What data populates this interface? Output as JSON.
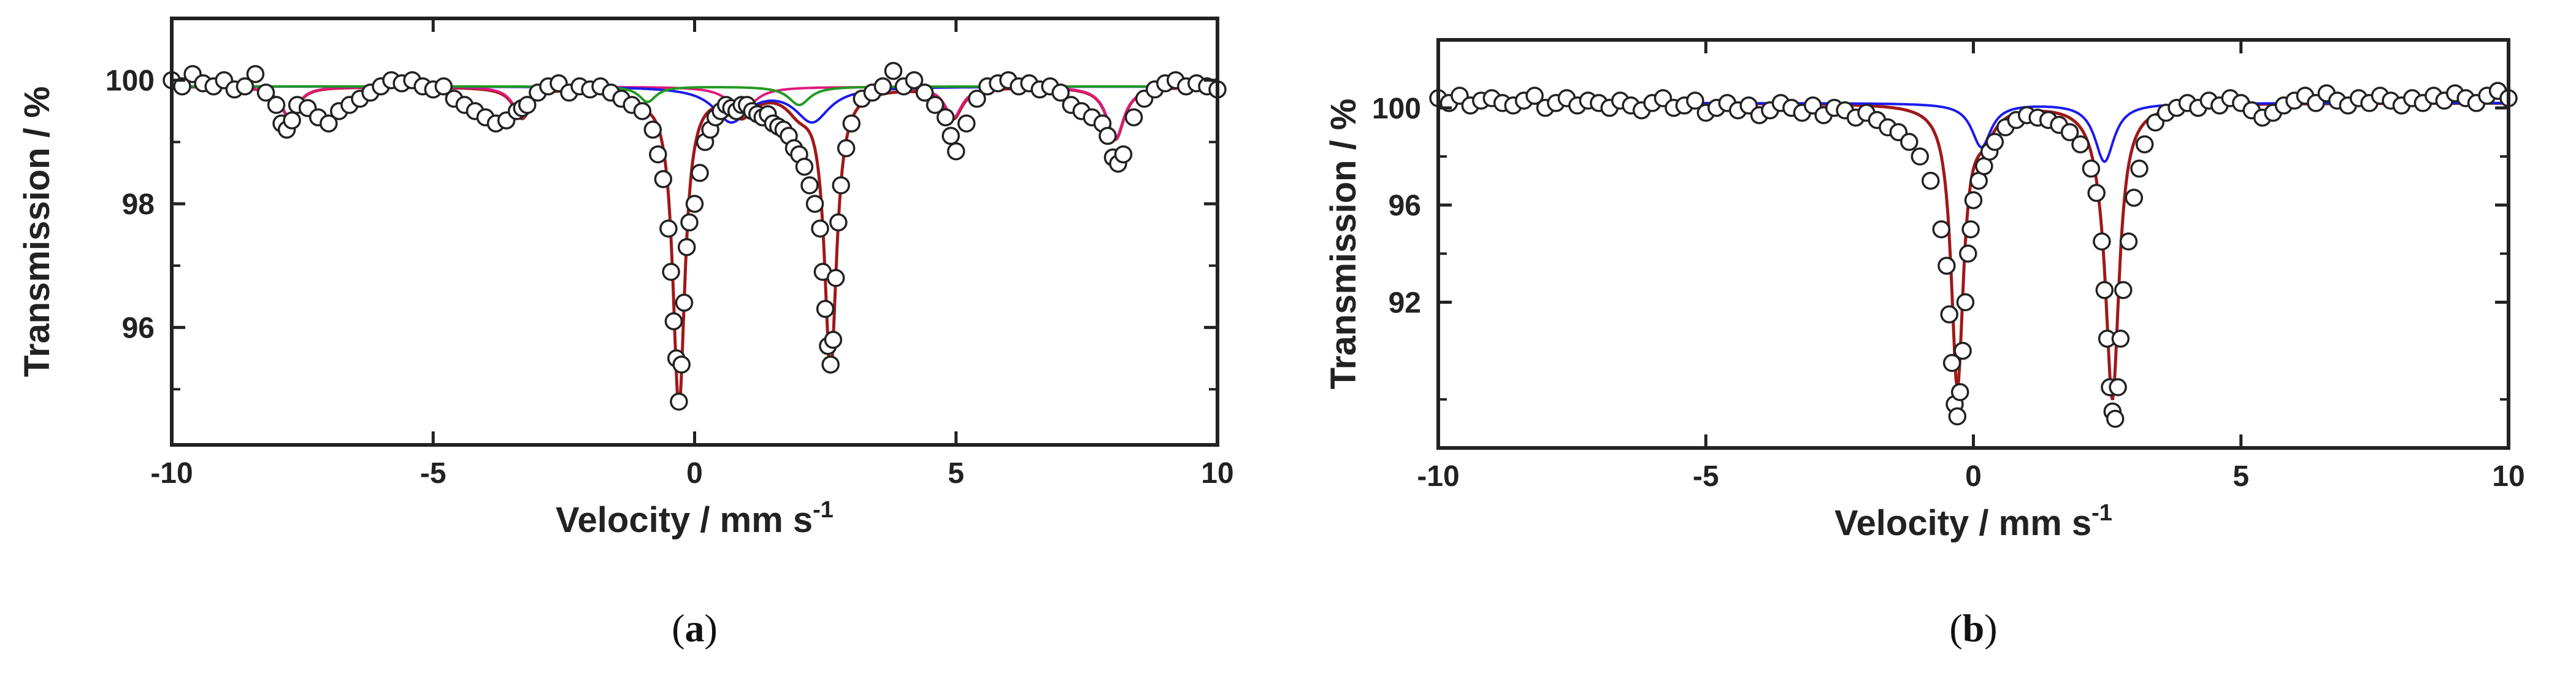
{
  "chart_data": [
    {
      "type": "scatter",
      "panel_label": "(a)",
      "panel_letter": "a",
      "xlabel": "Velocity / mm s",
      "xlabel_superscript": "-1",
      "ylabel": "Transmission / %",
      "xlim": [
        -10,
        10
      ],
      "ylim": [
        94.1,
        101.0
      ],
      "x_ticks": [
        -10,
        -5,
        0,
        5,
        10
      ],
      "x_tick_labels": [
        "-10",
        "-5",
        "0",
        "5",
        "10"
      ],
      "y_ticks": [
        96,
        98,
        100
      ],
      "y_tick_labels": [
        "96",
        "98",
        "100"
      ],
      "y_minor_ticks": [
        95,
        97,
        99
      ],
      "grid": false,
      "baseline": 99.9,
      "series": [
        {
          "color": "#a01818",
          "role": "total-fit",
          "components": [
            [
              -0.3,
              5.15,
              0.14
            ],
            [
              2.6,
              4.55,
              0.14
            ],
            [
              -7.75,
              0.5,
              0.2
            ],
            [
              -3.3,
              0.5,
              0.2
            ],
            [
              0.9,
              0.4,
              0.3
            ],
            [
              4.95,
              0.5,
              0.2
            ],
            [
              8.05,
              0.85,
              0.2
            ],
            [
              -1.2,
              0.25,
              0.3
            ],
            [
              2.0,
              0.3,
              0.3
            ]
          ]
        },
        {
          "color": "#e0187c",
          "role": "sextet-component",
          "components": [
            [
              -7.75,
              0.5,
              0.2
            ],
            [
              -3.3,
              0.5,
              0.2
            ],
            [
              0.9,
              0.4,
              0.3
            ],
            [
              4.95,
              0.5,
              0.2
            ],
            [
              8.05,
              0.85,
              0.2
            ]
          ]
        },
        {
          "color": "#1a1aee",
          "role": "doublet-component",
          "components": [
            [
              0.7,
              0.55,
              0.4
            ],
            [
              2.25,
              0.55,
              0.4
            ]
          ]
        },
        {
          "color": "#229922",
          "role": "doublet-component",
          "components": [
            [
              -0.9,
              0.25,
              0.2
            ],
            [
              2.0,
              0.3,
              0.25
            ]
          ]
        }
      ],
      "points": {
        "x": [
          -10.0,
          -9.8,
          -9.6,
          -9.4,
          -9.2,
          -9.0,
          -8.8,
          -8.6,
          -8.4,
          -8.2,
          -8.0,
          -7.9,
          -7.8,
          -7.7,
          -7.6,
          -7.4,
          -7.2,
          -7.0,
          -6.8,
          -6.6,
          -6.4,
          -6.2,
          -6.0,
          -5.8,
          -5.6,
          -5.4,
          -5.2,
          -5.0,
          -4.8,
          -4.6,
          -4.4,
          -4.2,
          -4.0,
          -3.8,
          -3.6,
          -3.4,
          -3.3,
          -3.2,
          -3.0,
          -2.8,
          -2.6,
          -2.4,
          -2.2,
          -2.0,
          -1.8,
          -1.6,
          -1.4,
          -1.2,
          -1.0,
          -0.8,
          -0.7,
          -0.6,
          -0.5,
          -0.45,
          -0.4,
          -0.35,
          -0.3,
          -0.25,
          -0.2,
          -0.15,
          -0.1,
          0.0,
          0.1,
          0.2,
          0.3,
          0.4,
          0.5,
          0.6,
          0.7,
          0.8,
          0.9,
          1.0,
          1.1,
          1.2,
          1.3,
          1.4,
          1.5,
          1.6,
          1.7,
          1.8,
          1.9,
          2.0,
          2.1,
          2.2,
          2.3,
          2.4,
          2.45,
          2.5,
          2.55,
          2.6,
          2.65,
          2.7,
          2.75,
          2.8,
          2.9,
          3.0,
          3.2,
          3.4,
          3.6,
          3.8,
          4.0,
          4.2,
          4.4,
          4.6,
          4.8,
          4.9,
          5.0,
          5.2,
          5.4,
          5.6,
          5.8,
          6.0,
          6.2,
          6.4,
          6.6,
          6.8,
          7.0,
          7.2,
          7.4,
          7.6,
          7.8,
          7.9,
          8.0,
          8.1,
          8.2,
          8.4,
          8.6,
          8.8,
          9.0,
          9.2,
          9.4,
          9.6,
          9.8,
          10.0
        ],
        "y": [
          100.0,
          99.9,
          100.1,
          99.95,
          99.9,
          100.0,
          99.85,
          99.9,
          100.1,
          99.8,
          99.6,
          99.3,
          99.2,
          99.35,
          99.6,
          99.55,
          99.4,
          99.3,
          99.5,
          99.6,
          99.7,
          99.8,
          99.9,
          100.0,
          99.95,
          100.0,
          99.9,
          99.85,
          99.9,
          99.7,
          99.6,
          99.5,
          99.4,
          99.3,
          99.35,
          99.5,
          99.55,
          99.6,
          99.8,
          99.9,
          99.95,
          99.8,
          99.9,
          99.85,
          99.9,
          99.8,
          99.7,
          99.6,
          99.5,
          99.2,
          98.8,
          98.4,
          97.6,
          96.9,
          96.1,
          95.5,
          94.8,
          95.4,
          96.4,
          97.3,
          97.7,
          98.0,
          98.5,
          99.0,
          99.2,
          99.4,
          99.5,
          99.6,
          99.55,
          99.5,
          99.6,
          99.6,
          99.5,
          99.45,
          99.4,
          99.45,
          99.3,
          99.25,
          99.2,
          99.1,
          98.9,
          98.8,
          98.6,
          98.3,
          98.0,
          97.6,
          96.9,
          96.3,
          95.7,
          95.4,
          95.8,
          96.8,
          97.7,
          98.3,
          98.9,
          99.3,
          99.7,
          99.8,
          99.9,
          100.15,
          99.9,
          100.0,
          99.8,
          99.6,
          99.4,
          99.1,
          98.85,
          99.3,
          99.7,
          99.9,
          99.95,
          100.0,
          99.9,
          99.95,
          99.85,
          99.9,
          99.8,
          99.6,
          99.5,
          99.4,
          99.3,
          99.1,
          98.75,
          98.65,
          98.8,
          99.4,
          99.7,
          99.85,
          99.95,
          100.0,
          99.9,
          99.95,
          99.9,
          99.85
        ]
      }
    },
    {
      "type": "scatter",
      "panel_label": "(b)",
      "panel_letter": "b",
      "xlabel": "Velocity / mm s",
      "xlabel_superscript": "-1",
      "ylabel": "Transmission / %",
      "xlim": [
        -10,
        10
      ],
      "ylim": [
        86.0,
        102.8
      ],
      "x_ticks": [
        -10,
        -5,
        0,
        5,
        10
      ],
      "x_tick_labels": [
        "-10",
        "-5",
        "0",
        "5",
        "10"
      ],
      "y_ticks": [
        92,
        96,
        100
      ],
      "y_tick_labels": [
        "92",
        "96",
        "100"
      ],
      "y_minor_ticks": [
        88,
        94,
        98
      ],
      "grid": false,
      "baseline": 100.2,
      "series": [
        {
          "color": "#a01818",
          "role": "total-fit",
          "components": [
            [
              -0.3,
              11.5,
              0.14
            ],
            [
              2.6,
              11.3,
              0.15
            ],
            [
              0.2,
              1.0,
              0.25
            ],
            [
              2.45,
              1.2,
              0.25
            ]
          ]
        },
        {
          "color": "#1a1aee",
          "role": "doublet-component",
          "components": [
            [
              0.15,
              1.8,
              0.22
            ],
            [
              2.45,
              2.4,
              0.22
            ]
          ]
        }
      ],
      "points": {
        "x": [
          -10.0,
          -9.8,
          -9.6,
          -9.4,
          -9.2,
          -9.0,
          -8.8,
          -8.6,
          -8.4,
          -8.2,
          -8.0,
          -7.8,
          -7.6,
          -7.4,
          -7.2,
          -7.0,
          -6.8,
          -6.6,
          -6.4,
          -6.2,
          -6.0,
          -5.8,
          -5.6,
          -5.4,
          -5.2,
          -5.0,
          -4.8,
          -4.6,
          -4.4,
          -4.2,
          -4.0,
          -3.8,
          -3.6,
          -3.4,
          -3.2,
          -3.0,
          -2.8,
          -2.6,
          -2.4,
          -2.2,
          -2.0,
          -1.8,
          -1.6,
          -1.4,
          -1.2,
          -1.0,
          -0.8,
          -0.6,
          -0.5,
          -0.45,
          -0.4,
          -0.35,
          -0.3,
          -0.25,
          -0.2,
          -0.15,
          -0.1,
          -0.05,
          0.0,
          0.1,
          0.2,
          0.3,
          0.4,
          0.6,
          0.8,
          1.0,
          1.2,
          1.4,
          1.6,
          1.8,
          2.0,
          2.2,
          2.3,
          2.4,
          2.45,
          2.5,
          2.55,
          2.6,
          2.65,
          2.7,
          2.75,
          2.8,
          2.9,
          3.0,
          3.1,
          3.2,
          3.4,
          3.6,
          3.8,
          4.0,
          4.2,
          4.4,
          4.6,
          4.8,
          5.0,
          5.2,
          5.4,
          5.6,
          5.8,
          6.0,
          6.2,
          6.4,
          6.6,
          6.8,
          7.0,
          7.2,
          7.4,
          7.6,
          7.8,
          8.0,
          8.2,
          8.4,
          8.6,
          8.8,
          9.0,
          9.2,
          9.4,
          9.6,
          9.8,
          10.0
        ],
        "y": [
          100.4,
          100.2,
          100.5,
          100.1,
          100.3,
          100.4,
          100.2,
          100.1,
          100.3,
          100.5,
          100.0,
          100.2,
          100.4,
          100.1,
          100.3,
          100.2,
          100.0,
          100.3,
          100.1,
          99.9,
          100.2,
          100.4,
          100.0,
          100.1,
          100.3,
          99.8,
          100.0,
          100.2,
          99.9,
          100.1,
          99.7,
          99.9,
          100.2,
          100.0,
          99.8,
          100.1,
          99.7,
          100.0,
          99.9,
          99.6,
          99.8,
          99.5,
          99.2,
          99.0,
          98.6,
          98.0,
          97.0,
          95.0,
          93.5,
          91.5,
          89.5,
          87.8,
          87.3,
          88.3,
          90.0,
          92.0,
          94.0,
          95.0,
          96.2,
          97.0,
          97.6,
          98.2,
          98.6,
          99.2,
          99.5,
          99.7,
          99.6,
          99.5,
          99.3,
          99.0,
          98.5,
          97.5,
          96.5,
          94.5,
          92.5,
          90.5,
          88.5,
          87.5,
          87.2,
          88.5,
          90.5,
          92.5,
          94.5,
          96.3,
          97.5,
          98.5,
          99.4,
          99.8,
          100.0,
          100.2,
          100.0,
          100.3,
          100.1,
          100.4,
          100.2,
          99.9,
          99.6,
          99.8,
          100.1,
          100.3,
          100.5,
          100.2,
          100.6,
          100.3,
          100.1,
          100.4,
          100.2,
          100.5,
          100.3,
          100.1,
          100.4,
          100.2,
          100.5,
          100.3,
          100.6,
          100.4,
          100.2,
          100.5,
          100.7,
          100.4
        ]
      }
    }
  ]
}
